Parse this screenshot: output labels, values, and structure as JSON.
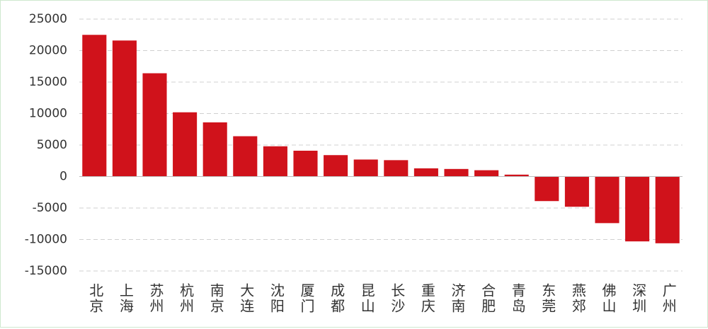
{
  "chart_data": {
    "type": "bar",
    "categories": [
      "北京",
      "上海",
      "苏州",
      "杭州",
      "南京",
      "大连",
      "沈阳",
      "厦门",
      "成都",
      "昆山",
      "长沙",
      "重庆",
      "济南",
      "合肥",
      "青岛",
      "东莞",
      "燕郊",
      "佛山",
      "深圳",
      "广州"
    ],
    "values": [
      22500,
      21600,
      16400,
      10200,
      8600,
      6400,
      4800,
      4100,
      3400,
      2700,
      2600,
      1300,
      1200,
      1000,
      300,
      -3900,
      -4800,
      -7400,
      -10300,
      -10600
    ],
    "color": "#d0121b",
    "ylim": [
      -15000,
      25000
    ],
    "yticks": [
      -15000,
      -10000,
      -5000,
      0,
      5000,
      10000,
      15000,
      20000,
      25000
    ],
    "grid": true
  }
}
